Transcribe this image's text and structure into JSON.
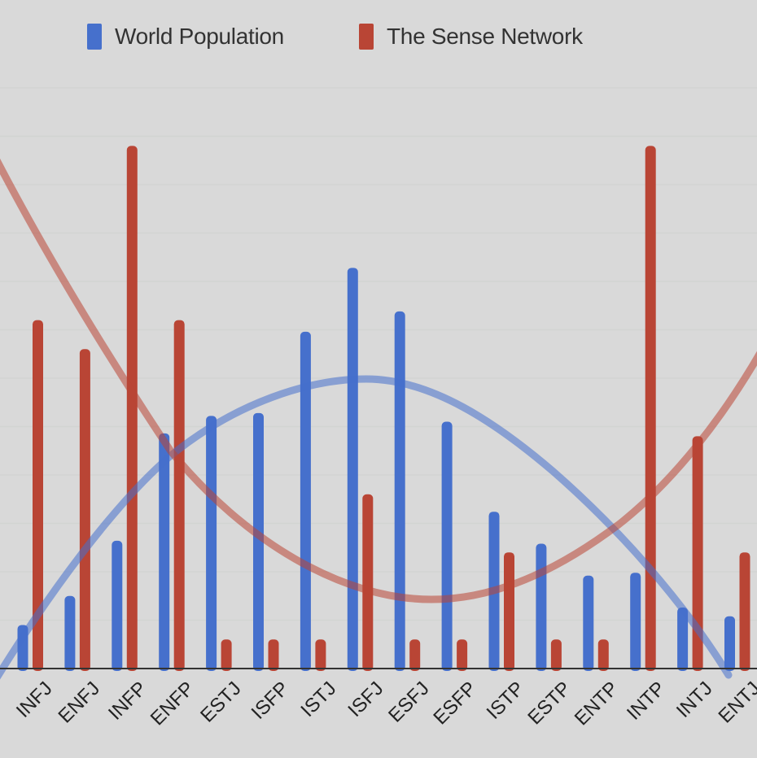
{
  "legend": {
    "items": [
      {
        "label": "World Population",
        "color": "#4670cc"
      },
      {
        "label": "The Sense Network",
        "color": "#b94535"
      }
    ]
  },
  "chart_data": {
    "type": "bar",
    "title": "",
    "xlabel": "",
    "ylabel": "",
    "ylim": [
      0,
      20
    ],
    "grid": true,
    "legend_position": "top",
    "categories": [
      "INFJ",
      "ENFJ",
      "INFP",
      "ENFP",
      "ESTJ",
      "ISFP",
      "ISTJ",
      "ISFJ",
      "ESFJ",
      "ESFP",
      "ISTP",
      "ESTP",
      "ENTP",
      "INTP",
      "INTJ",
      "ENTJ"
    ],
    "series": [
      {
        "name": "World Population",
        "color": "#4670cc",
        "values": [
          1.5,
          2.5,
          4.4,
          8.1,
          8.7,
          8.8,
          11.6,
          13.8,
          12.3,
          8.5,
          5.4,
          4.3,
          3.2,
          3.3,
          2.1,
          1.8
        ]
      },
      {
        "name": "The Sense Network",
        "color": "#b94535",
        "values": [
          12,
          11,
          18,
          12,
          1,
          1,
          1,
          6,
          1,
          1,
          4,
          1,
          1,
          18,
          8,
          4
        ]
      }
    ],
    "trendlines": [
      {
        "series": "World Population",
        "type": "polynomial",
        "color": "#8aa4d9"
      },
      {
        "series": "The Sense Network",
        "type": "polynomial",
        "color": "#cf8a82"
      }
    ]
  }
}
